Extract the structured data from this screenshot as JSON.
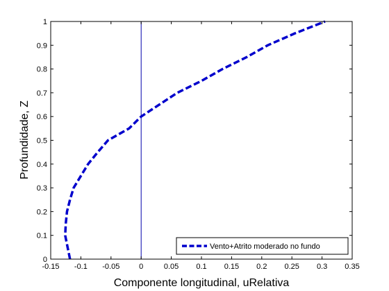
{
  "chart_data": {
    "type": "line",
    "xlabel": "Componente longitudinal, uRelativa",
    "ylabel": "Profundidade, Z",
    "xlim": [
      -0.15,
      0.35
    ],
    "ylim": [
      0,
      1
    ],
    "xticks": [
      -0.15,
      -0.1,
      -0.05,
      0,
      0.05,
      0.1,
      0.15,
      0.2,
      0.25,
      0.3,
      0.35
    ],
    "yticks": [
      0,
      0.1,
      0.2,
      0.3,
      0.4,
      0.5,
      0.6,
      0.7,
      0.8,
      0.9,
      1
    ],
    "xtick_labels": [
      "-0.15",
      "-0.1",
      "-0.05",
      "0",
      "0.05",
      "0.1",
      "0.15",
      "0.2",
      "0.25",
      "0.3",
      "0.35"
    ],
    "ytick_labels": [
      "0",
      "0.1",
      "0.2",
      "0.3",
      "0.4",
      "0.5",
      "0.6",
      "0.7",
      "0.8",
      "0.9",
      "1"
    ],
    "grid": false,
    "legend_position": "bottom-right",
    "reference_line": {
      "x": 0,
      "color": "#0000aa"
    },
    "series": [
      {
        "name": "Vento+Atrito moderado no fundo",
        "color": "#0000cc",
        "style": "dashed",
        "points": [
          [
            -0.118,
            0.0
          ],
          [
            -0.122,
            0.05
          ],
          [
            -0.126,
            0.1
          ],
          [
            -0.125,
            0.15
          ],
          [
            -0.123,
            0.2
          ],
          [
            -0.118,
            0.25
          ],
          [
            -0.112,
            0.3
          ],
          [
            -0.1,
            0.35
          ],
          [
            -0.088,
            0.4
          ],
          [
            -0.072,
            0.45
          ],
          [
            -0.055,
            0.5
          ],
          [
            -0.02,
            0.55
          ],
          [
            0.0,
            0.6
          ],
          [
            0.03,
            0.65
          ],
          [
            0.06,
            0.7
          ],
          [
            0.1,
            0.75
          ],
          [
            0.135,
            0.8
          ],
          [
            0.175,
            0.85
          ],
          [
            0.21,
            0.9
          ],
          [
            0.255,
            0.95
          ],
          [
            0.305,
            1.0
          ]
        ]
      }
    ]
  }
}
